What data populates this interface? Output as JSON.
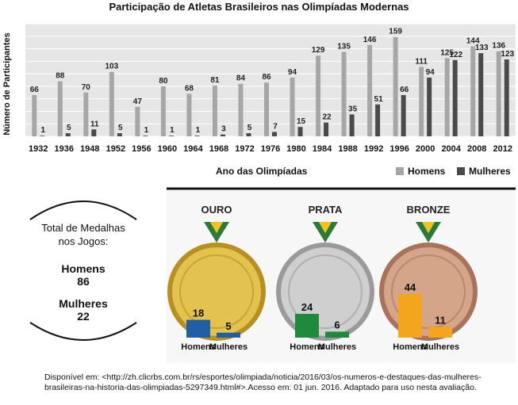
{
  "chart_data": [
    {
      "type": "bar",
      "title": "Participação de Atletas Brasileiros nas Olimpíadas Modernas",
      "xlabel": "Ano das Olimpíadas",
      "ylabel": "Número de Participantes",
      "categories": [
        "1932",
        "1936",
        "1948",
        "1952",
        "1956",
        "1960",
        "1964",
        "1968",
        "1972",
        "1976",
        "1980",
        "1984",
        "1988",
        "1992",
        "1996",
        "2000",
        "2004",
        "2008",
        "2012"
      ],
      "series": [
        {
          "name": "Homens",
          "color": "#a6a6a6",
          "values": [
            66,
            88,
            70,
            103,
            47,
            80,
            68,
            81,
            84,
            86,
            94,
            129,
            135,
            146,
            159,
            111,
            125,
            144,
            136
          ]
        },
        {
          "name": "Mulheres",
          "color": "#4a4a4a",
          "values": [
            1,
            5,
            11,
            5,
            1,
            1,
            1,
            3,
            5,
            7,
            15,
            22,
            35,
            51,
            66,
            94,
            122,
            133,
            123
          ]
        }
      ],
      "ylim": [
        0,
        180
      ],
      "grid": true,
      "legend": "bottom-right"
    },
    {
      "type": "bar",
      "title": "OURO",
      "categories": [
        "Homens",
        "Mulheres"
      ],
      "values": [
        18,
        5
      ],
      "color": "#1f5fa8"
    },
    {
      "type": "bar",
      "title": "PRATA",
      "categories": [
        "Homens",
        "Mulheres"
      ],
      "values": [
        24,
        6
      ],
      "color": "#1e8a3c"
    },
    {
      "type": "bar",
      "title": "BRONZE",
      "categories": [
        "Homens",
        "Mulheres"
      ],
      "values": [
        44,
        11
      ],
      "color": "#f2a51d"
    }
  ],
  "medal_summary": {
    "title_line1": "Total de Medalhas",
    "title_line2": "nos Jogos:",
    "men_label": "Homens",
    "men_value": "86",
    "women_label": "Mulheres",
    "women_value": "22"
  },
  "source": "Disponível em: <http://zh.clicrbs.com.br/rs/esportes/olimpiada/noticia/2016/03/os-numeros-e-destaques-das-mulheres-brasileiras-na-historia-das-olimpiadas-5297349.html#>.Acesso em: 01 jun. 2016. Adaptado para uso nesta avaliação."
}
